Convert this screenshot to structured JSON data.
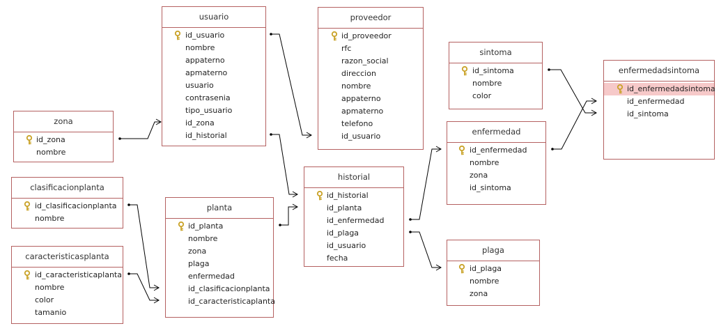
{
  "tables": {
    "usuario": {
      "title": "usuario",
      "fields": [
        "id_usuario",
        "nombre",
        "appaterno",
        "apmaterno",
        "usuario",
        "contrasenia",
        "tipo_usuario",
        "id_zona",
        "id_historial"
      ]
    },
    "proveedor": {
      "title": "proveedor",
      "fields": [
        "id_proveedor",
        "rfc",
        "razon_social",
        "direccion",
        "nombre",
        "appaterno",
        "apmaterno",
        "telefono",
        "id_usuario"
      ]
    },
    "sintoma": {
      "title": "sintoma",
      "fields": [
        "id_sintoma",
        "nombre",
        "color"
      ]
    },
    "enfermedadsintoma": {
      "title": "enfermedadsintoma",
      "fields": [
        "id_enfermedadsintoma",
        "id_enfermedad",
        "id_sintoma"
      ]
    },
    "zona": {
      "title": "zona",
      "fields": [
        "id_zona",
        "nombre"
      ]
    },
    "enfermedad": {
      "title": "enfermedad",
      "fields": [
        "id_enfermedad",
        "nombre",
        "zona",
        "id_sintoma"
      ]
    },
    "clasificacionplanta": {
      "title": "clasificacionplanta",
      "fields": [
        "id_clasificacionplanta",
        "nombre"
      ]
    },
    "historial": {
      "title": "historial",
      "fields": [
        "id_historial",
        "id_planta",
        "id_enfermedad",
        "id_plaga",
        "id_usuario",
        "fecha"
      ]
    },
    "planta": {
      "title": "planta",
      "fields": [
        "id_planta",
        "nombre",
        "zona",
        "plaga",
        "enfermedad",
        "id_clasificacionplanta",
        "id_caracteristicaplanta"
      ]
    },
    "caracteristicasplanta": {
      "title": "caracteristicasplanta",
      "fields": [
        "id_caracteristicaplanta",
        "nombre",
        "color",
        "tamanio"
      ]
    },
    "plaga": {
      "title": "plaga",
      "fields": [
        "id_plaga",
        "nombre",
        "zona"
      ]
    }
  },
  "icons": {
    "primary_key": "key-icon"
  },
  "colors": {
    "border": "#b46060",
    "selected_row": "#f6c9c9",
    "key": "#c9a227",
    "line": "#000000"
  }
}
